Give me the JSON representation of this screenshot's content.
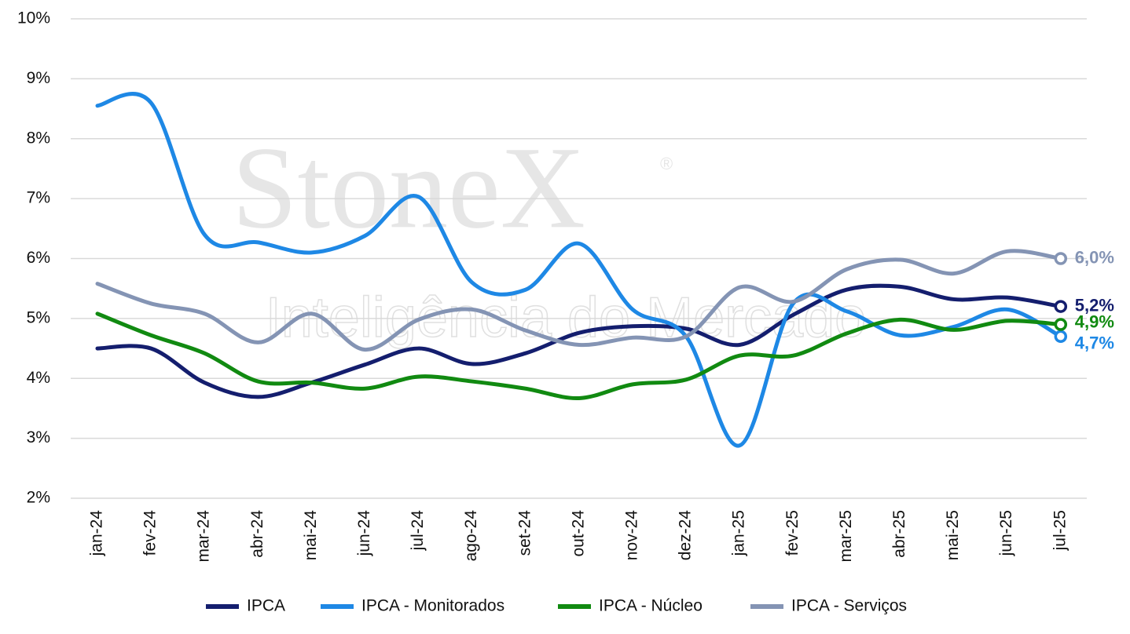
{
  "chart_data": {
    "type": "line",
    "watermark": {
      "title": "StoneX",
      "mark": "®",
      "subtitle": "Inteligência do Mercado"
    },
    "categories": [
      "jan-24",
      "fev-24",
      "mar-24",
      "abr-24",
      "mai-24",
      "jun-24",
      "jul-24",
      "ago-24",
      "set-24",
      "out-24",
      "nov-24",
      "dez-24",
      "jan-25",
      "fev-25",
      "mar-25",
      "abr-25",
      "mai-25",
      "jun-25",
      "jul-25"
    ],
    "series": [
      {
        "name": "IPCA",
        "color": "#141e6e",
        "values": [
          4.5,
          4.5,
          3.93,
          3.69,
          3.93,
          4.23,
          4.5,
          4.24,
          4.42,
          4.76,
          4.87,
          4.83,
          4.56,
          5.06,
          5.48,
          5.53,
          5.32,
          5.35,
          5.2
        ],
        "value_labels": [
          null,
          null,
          null,
          null,
          null,
          null,
          null,
          null,
          null,
          null,
          null,
          null,
          null,
          null,
          null,
          null,
          null,
          null,
          "5,2%"
        ]
      },
      {
        "name": "IPCA - Monitorados",
        "color": "#1e88e5",
        "values": [
          8.55,
          8.6,
          6.4,
          6.27,
          6.1,
          6.38,
          7.03,
          5.6,
          5.48,
          6.25,
          5.15,
          4.7,
          2.88,
          5.25,
          5.12,
          4.72,
          4.86,
          5.15,
          4.7
        ],
        "value_labels": [
          null,
          null,
          null,
          null,
          null,
          null,
          null,
          null,
          null,
          null,
          null,
          null,
          null,
          null,
          null,
          null,
          null,
          null,
          "4,7%"
        ]
      },
      {
        "name": "IPCA - Núcleo",
        "color": "#118a11",
        "values": [
          5.08,
          4.72,
          4.42,
          3.95,
          3.93,
          3.83,
          4.03,
          3.95,
          3.83,
          3.67,
          3.9,
          3.98,
          4.38,
          4.38,
          4.75,
          4.98,
          4.81,
          4.96,
          4.9
        ],
        "value_labels": [
          null,
          null,
          null,
          null,
          null,
          null,
          null,
          null,
          null,
          null,
          null,
          null,
          null,
          null,
          null,
          null,
          null,
          null,
          "4,9%"
        ]
      },
      {
        "name": "IPCA - Serviços",
        "color": "#8494b4",
        "values": [
          5.58,
          5.25,
          5.08,
          4.6,
          5.08,
          4.48,
          4.98,
          5.15,
          4.8,
          4.56,
          4.68,
          4.7,
          5.52,
          5.28,
          5.82,
          5.98,
          5.75,
          6.12,
          6.0
        ],
        "value_labels": [
          null,
          null,
          null,
          null,
          null,
          null,
          null,
          null,
          null,
          null,
          null,
          null,
          null,
          null,
          null,
          null,
          null,
          null,
          "6,0%"
        ]
      }
    ],
    "ylim": [
      2,
      10
    ],
    "yticks": [
      {
        "value": 2,
        "label": "2%"
      },
      {
        "value": 3,
        "label": "3%"
      },
      {
        "value": 4,
        "label": "4%"
      },
      {
        "value": 5,
        "label": "5%"
      },
      {
        "value": 6,
        "label": "6%"
      },
      {
        "value": 7,
        "label": "7%"
      },
      {
        "value": 8,
        "label": "8%"
      },
      {
        "value": 9,
        "label": "9%"
      },
      {
        "value": 10,
        "label": "10%"
      }
    ],
    "grid": true,
    "legend": "bottom"
  }
}
